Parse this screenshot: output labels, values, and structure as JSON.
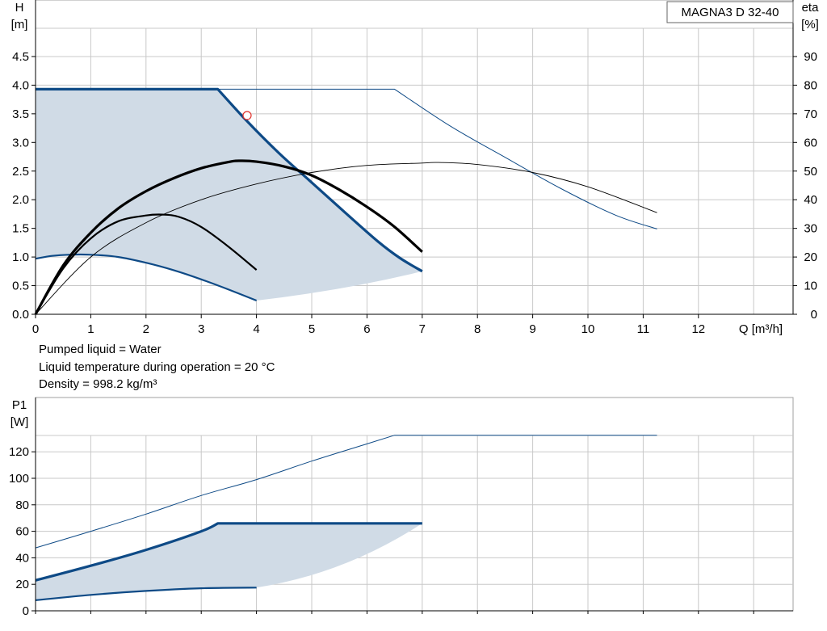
{
  "pump_label": "MAGNA3 D 32-40",
  "info": {
    "liquid": "Pumped liquid = Water",
    "temperature": "Liquid temperature during operation = 20 °C",
    "density": "Density = 998.2 kg/m³"
  },
  "colors": {
    "blue": "#0e4a86",
    "area": "#d0dbe6",
    "grid": "#c8c8c8",
    "black": "#000000"
  },
  "chart_data": [
    {
      "type": "line",
      "title": "",
      "ylabel": "H\n[m]",
      "y2label": "eta\n[%]",
      "xlabel": "Q [m³/h]",
      "xlim": [
        0,
        13.7
      ],
      "ylim": [
        0,
        5.0
      ],
      "y2lim": [
        0,
        100
      ],
      "xticks": [
        0,
        1,
        2,
        3,
        4,
        5,
        6,
        7,
        8,
        9,
        10,
        11,
        12
      ],
      "yticks": [
        0.0,
        0.5,
        1.0,
        1.5,
        2.0,
        2.5,
        3.0,
        3.5,
        4.0,
        4.5
      ],
      "y2ticks": [
        0,
        10,
        20,
        30,
        40,
        50,
        60,
        70,
        80,
        90
      ],
      "grid": true,
      "duty_point": {
        "q": 3.83,
        "h": 3.47
      },
      "series": [
        {
          "role": "operating-area",
          "x": [
            0,
            3.3,
            7.0,
            4.0,
            0
          ],
          "y": [
            3.93,
            3.93,
            0.75,
            0.24,
            0.97
          ]
        },
        {
          "role": "h-max-curve",
          "axis": "left",
          "width": 3.2,
          "color": "blue",
          "x": [
            0,
            3.3,
            3.8,
            4.4,
            5.0,
            5.6,
            6.2,
            6.6,
            7.0
          ],
          "y": [
            3.93,
            3.93,
            3.4,
            2.82,
            2.3,
            1.78,
            1.27,
            0.98,
            0.75
          ]
        },
        {
          "role": "h-min-curve",
          "axis": "left",
          "width": 2.2,
          "color": "blue",
          "x": [
            0,
            0.3,
            0.6,
            1.0,
            1.5,
            2.0,
            2.5,
            3.0,
            3.5,
            4.0
          ],
          "y": [
            0.97,
            1.02,
            1.04,
            1.04,
            1.0,
            0.9,
            0.77,
            0.61,
            0.43,
            0.24
          ]
        },
        {
          "role": "h-max-extended",
          "axis": "left",
          "width": 1.0,
          "color": "blue",
          "x": [
            3.3,
            6.5,
            7.5,
            8.5,
            9.5,
            10.5,
            11.25
          ],
          "y": [
            3.93,
            3.93,
            3.29,
            2.74,
            2.2,
            1.73,
            1.49
          ]
        },
        {
          "role": "eta-max-curve",
          "axis": "right",
          "width": 3.2,
          "color": "black",
          "x": [
            0,
            0.5,
            1.0,
            1.5,
            2.0,
            2.5,
            3.0,
            3.5,
            3.7,
            4.0,
            4.5,
            5.0,
            5.5,
            6.0,
            6.5,
            7.0
          ],
          "y": [
            0,
            17,
            28.5,
            37,
            43,
            47.5,
            51,
            53.2,
            53.6,
            53.3,
            51.6,
            48.5,
            43.5,
            37.5,
            30.5,
            21.8
          ]
        },
        {
          "role": "eta-min-curve",
          "axis": "right",
          "width": 2.2,
          "color": "black",
          "x": [
            0,
            0.5,
            1.0,
            1.5,
            2.0,
            2.3,
            2.6,
            3.0,
            3.5,
            4.0
          ],
          "y": [
            0,
            16,
            26.5,
            32.5,
            34.5,
            34.8,
            34.0,
            30.5,
            23.5,
            15.5
          ]
        },
        {
          "role": "eta-extended",
          "axis": "right",
          "width": 0.9,
          "color": "black",
          "x": [
            0,
            1,
            2,
            3,
            4,
            5,
            6,
            7,
            7.3,
            8,
            9,
            10,
            11.25
          ],
          "y": [
            0,
            20,
            32,
            40,
            45.5,
            49.5,
            52,
            52.8,
            53,
            52.3,
            49.5,
            44.5,
            35.5
          ]
        }
      ]
    },
    {
      "type": "line",
      "title": "",
      "ylabel": "P1\n[W]",
      "xlim": [
        0,
        13.7
      ],
      "ylim": [
        0,
        140
      ],
      "yticks": [
        0,
        20,
        40,
        60,
        80,
        100,
        120
      ],
      "grid": true,
      "series": [
        {
          "role": "power-area",
          "x": [
            0,
            3.3,
            7.0,
            4.0,
            0
          ],
          "y": [
            23,
            66,
            66,
            17.5,
            8
          ]
        },
        {
          "role": "p1-max-curve",
          "width": 3.2,
          "color": "blue",
          "x": [
            0,
            1,
            2,
            3,
            3.3,
            7.0
          ],
          "y": [
            23,
            34,
            46,
            60,
            66,
            66
          ]
        },
        {
          "role": "p1-min-curve",
          "width": 2.2,
          "color": "blue",
          "x": [
            0,
            1,
            2,
            3,
            4
          ],
          "y": [
            8,
            12,
            15,
            17,
            17.5
          ]
        },
        {
          "role": "p1-extended",
          "width": 1.0,
          "color": "blue",
          "x": [
            0,
            1,
            2,
            3,
            4,
            5,
            6,
            6.5,
            11.25
          ],
          "y": [
            47.5,
            60,
            73,
            87,
            99,
            113,
            126,
            132.5,
            132.5
          ]
        }
      ]
    }
  ]
}
